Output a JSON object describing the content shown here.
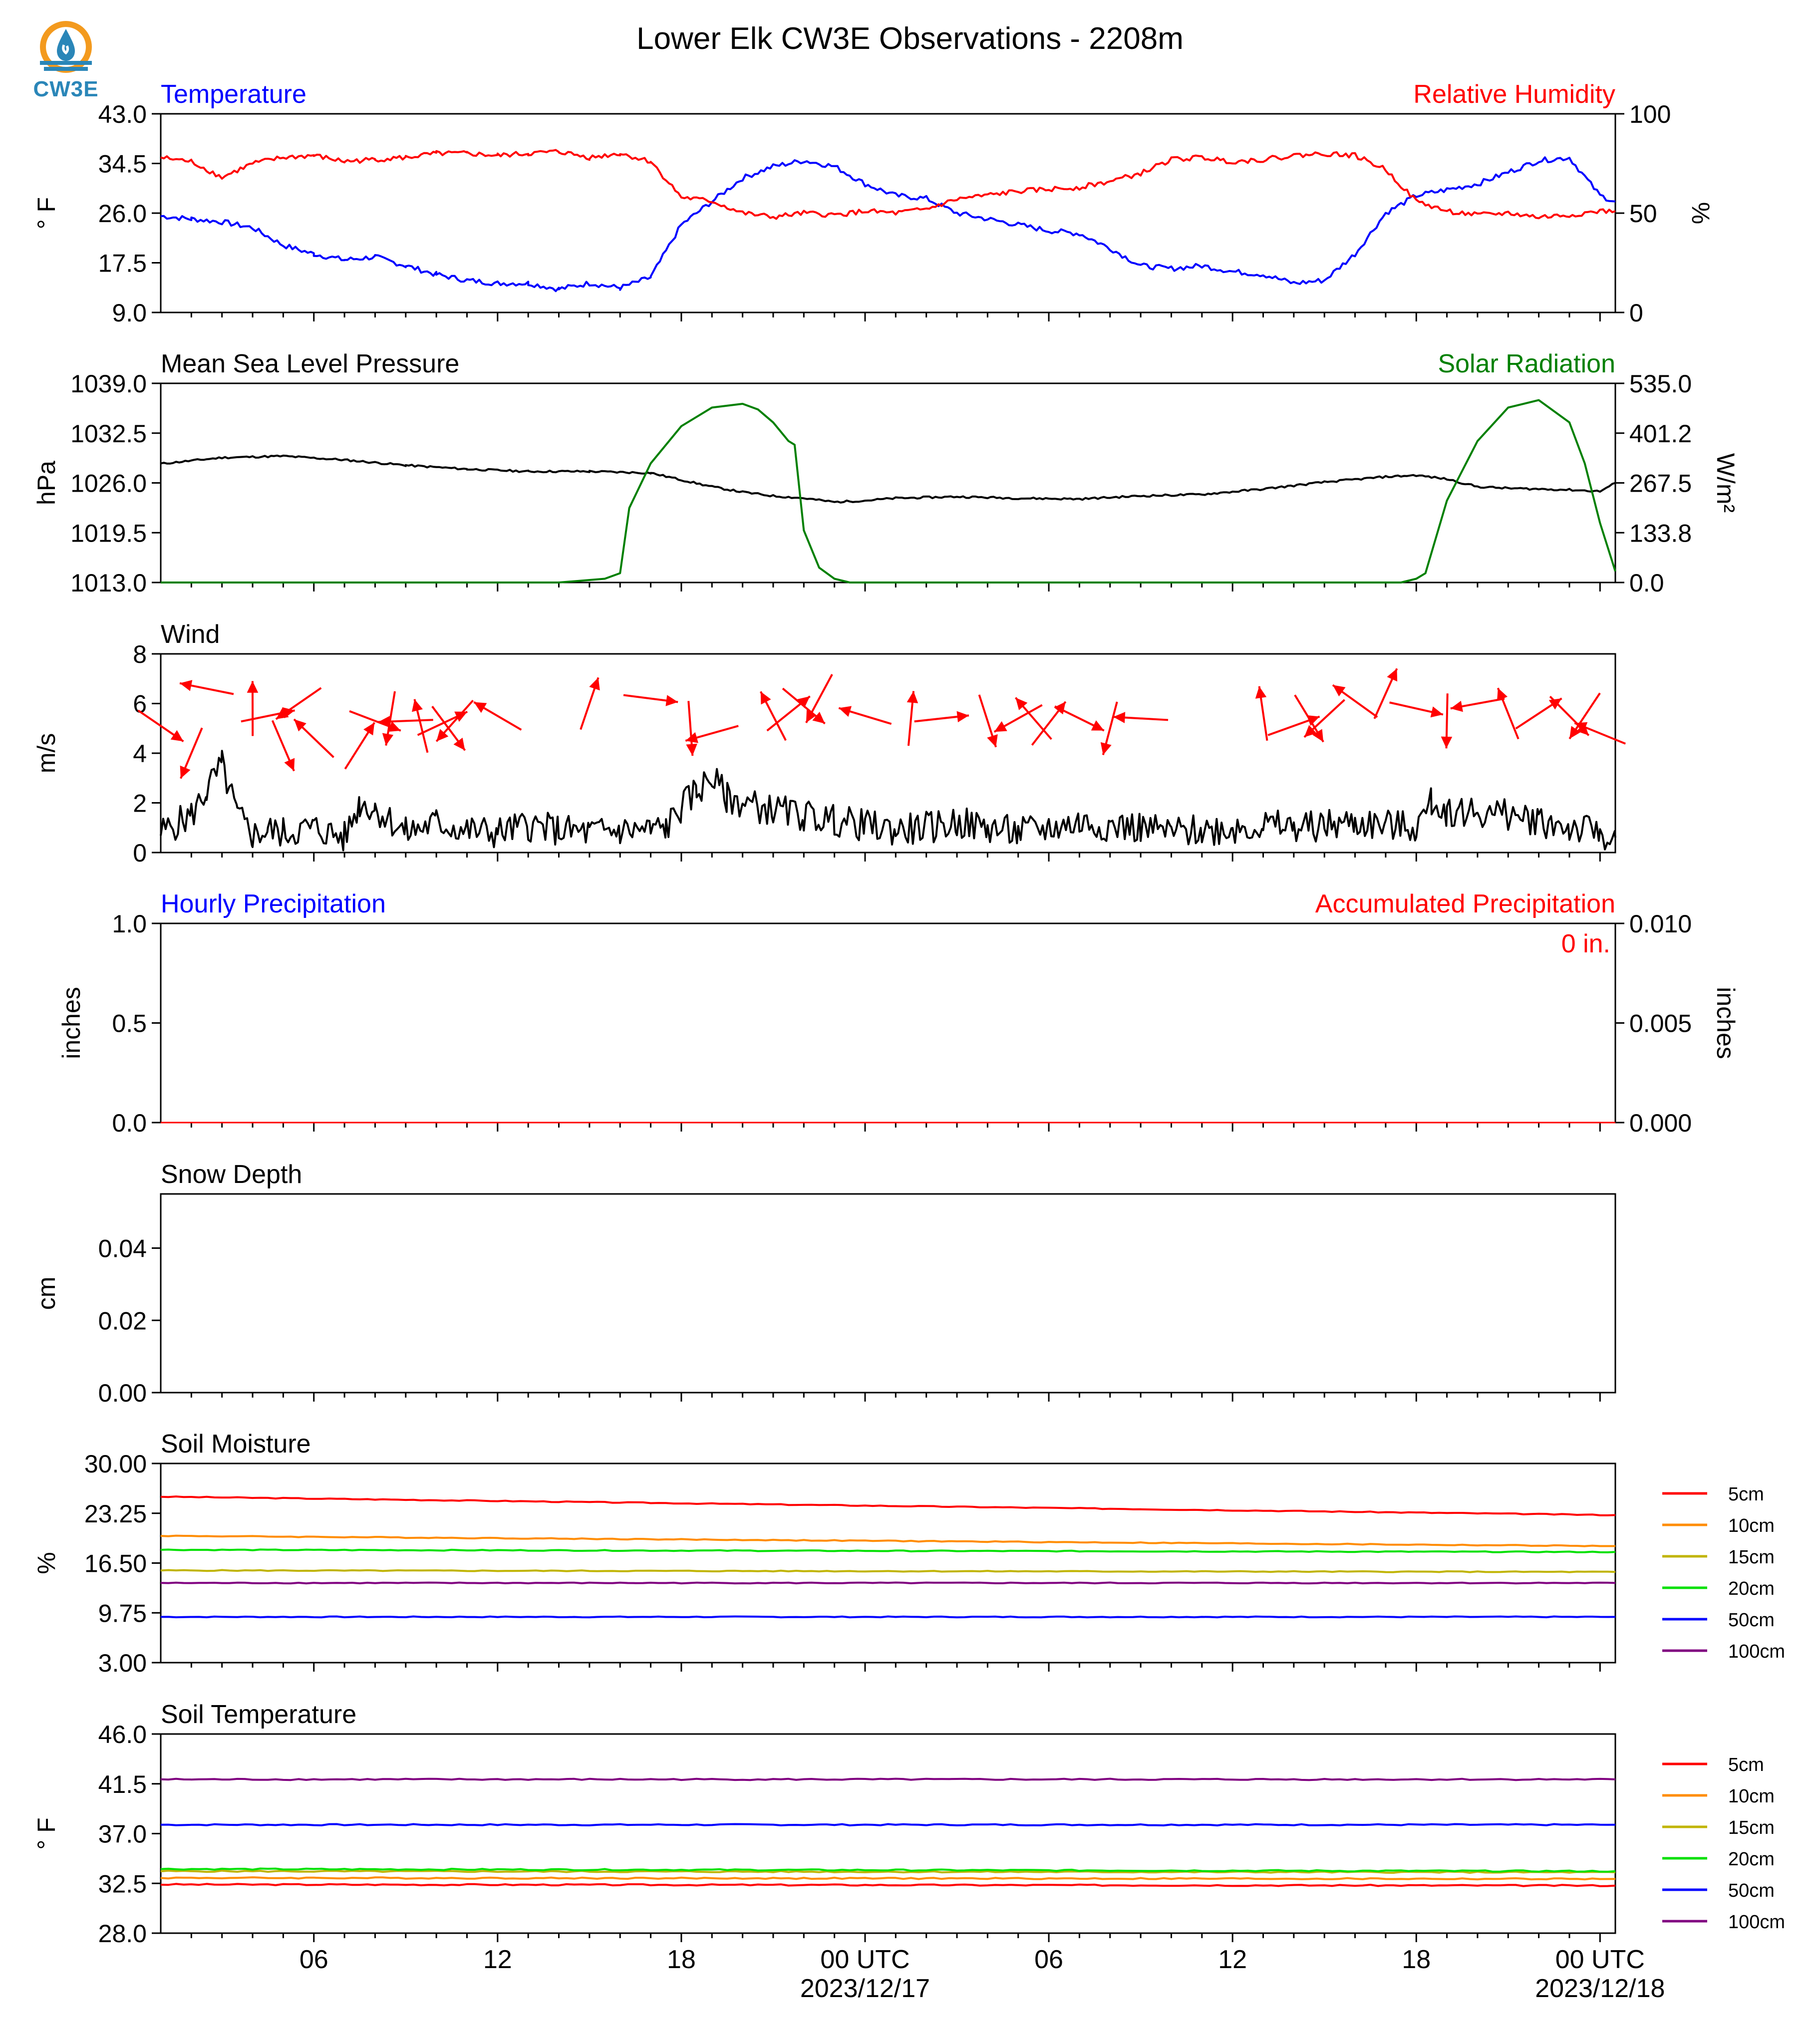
{
  "title": "Lower Elk CW3E Observations - 2208m",
  "logo": {
    "text": "CW3E",
    "icon": "water-drop-sun-logo",
    "colors": {
      "sun": "#f39a1e",
      "water": "#2a86b8"
    }
  },
  "x_axis": {
    "time_range_hours": [
      0,
      47.5
    ],
    "major_tick_labels": [
      {
        "hour": 5,
        "label": "06",
        "sublabel": ""
      },
      {
        "hour": 11,
        "label": "12",
        "sublabel": ""
      },
      {
        "hour": 17,
        "label": "18",
        "sublabel": ""
      },
      {
        "hour": 23,
        "label": "00 UTC",
        "sublabel": "2023/12/17"
      },
      {
        "hour": 29,
        "label": "06",
        "sublabel": ""
      },
      {
        "hour": 35,
        "label": "12",
        "sublabel": ""
      },
      {
        "hour": 41,
        "label": "18",
        "sublabel": ""
      },
      {
        "hour": 47,
        "label": "00 UTC",
        "sublabel": "2023/12/18"
      }
    ]
  },
  "chart_data": [
    {
      "type": "line",
      "title_left": "Temperature",
      "title_right": "Relative Humidity",
      "ylabel_left": "° F",
      "ylabel_right": "%",
      "ylim_left": [
        9.0,
        43.0
      ],
      "ylim_right": [
        0,
        100
      ],
      "yticks_left": [
        "43.0",
        "34.5",
        "26.0",
        "17.5",
        "9.0"
      ],
      "yticks_right": [
        "100",
        "50",
        "0"
      ],
      "series": [
        {
          "name": "Temperature",
          "axis": "left",
          "color": "#0000ff",
          "x": [
            0,
            1,
            2,
            3,
            4,
            5,
            6,
            7,
            8,
            9,
            10,
            11,
            12,
            13,
            14,
            15,
            16,
            17,
            18,
            19,
            20,
            21,
            22,
            23,
            24,
            25,
            26,
            27,
            28,
            29,
            30,
            31,
            32,
            33,
            34,
            35,
            36,
            37,
            38,
            39,
            40,
            41,
            42,
            43,
            44,
            45,
            46,
            47,
            47.5
          ],
          "values": [
            25.5,
            25,
            24.5,
            23.5,
            20.5,
            19,
            18,
            18.5,
            17,
            15.5,
            14.5,
            14,
            14,
            13,
            14,
            13.2,
            15,
            24,
            28,
            32,
            34,
            35,
            34,
            31,
            29,
            28.5,
            26,
            25,
            24,
            23,
            22.5,
            20,
            17,
            16.5,
            17,
            16,
            15.5,
            14,
            14.5,
            19,
            26,
            29,
            30,
            31,
            33,
            35,
            35.5,
            29,
            28
          ]
        },
        {
          "name": "Relative Humidity",
          "axis": "right",
          "color": "#ff0000",
          "x": [
            0,
            1,
            2,
            3,
            4,
            5,
            6,
            7,
            8,
            9,
            10,
            11,
            12,
            13,
            14,
            15,
            16,
            17,
            18,
            19,
            20,
            21,
            22,
            23,
            24,
            25,
            26,
            27,
            28,
            29,
            30,
            31,
            32,
            33,
            34,
            35,
            36,
            37,
            38,
            39,
            40,
            41,
            42,
            43,
            44,
            45,
            46,
            47,
            47.5
          ],
          "values": [
            78,
            76,
            68,
            75,
            78,
            79,
            76,
            77,
            78,
            80,
            80,
            79,
            80,
            81,
            78,
            80,
            76,
            58,
            56,
            50,
            48,
            50,
            49,
            51,
            50,
            52,
            57,
            59,
            61,
            62,
            63,
            66,
            70,
            77,
            78,
            76,
            77,
            79,
            80,
            79,
            72,
            56,
            51,
            49,
            50,
            48,
            49,
            51,
            51
          ]
        }
      ]
    },
    {
      "type": "line",
      "title_left": "Mean Sea Level Pressure",
      "title_right": "Solar Radiation",
      "ylabel_left": "hPa",
      "ylabel_right": "W/m²",
      "ylim_left": [
        1013.0,
        1039.0
      ],
      "ylim_right": [
        0,
        535.0
      ],
      "yticks_left": [
        "1039.0",
        "1032.5",
        "1026.0",
        "1019.5",
        "1013.0"
      ],
      "yticks_right": [
        "535.0",
        "401.2",
        "267.5",
        "133.8",
        "0.0"
      ],
      "series": [
        {
          "name": "Mean Sea Level Pressure",
          "axis": "left",
          "color": "#000000",
          "x": [
            0,
            2,
            4,
            6,
            8,
            10,
            12,
            14,
            16,
            18,
            19,
            20,
            21,
            22,
            23,
            24,
            26,
            28,
            30,
            32,
            34,
            36,
            38,
            40,
            41,
            42,
            43,
            44,
            45,
            46,
            47,
            47.5
          ],
          "values": [
            1028.5,
            1029.3,
            1029.5,
            1029.0,
            1028.3,
            1027.8,
            1027.5,
            1027.5,
            1027.3,
            1025.5,
            1024.8,
            1024.3,
            1024.0,
            1023.5,
            1023.7,
            1024.0,
            1024.2,
            1024.0,
            1023.9,
            1024.3,
            1024.5,
            1025.2,
            1026.1,
            1026.8,
            1027.0,
            1026.5,
            1025.5,
            1025.3,
            1025.2,
            1025.1,
            1024.9,
            1026.0
          ]
        },
        {
          "name": "Solar Radiation",
          "axis": "right",
          "color": "#008000",
          "x": [
            0,
            13,
            14.5,
            15,
            15.3,
            16,
            17,
            18,
            19,
            19.5,
            20,
            20.5,
            20.7,
            21,
            21.5,
            22,
            22.5,
            23,
            40.5,
            41,
            41.3,
            42,
            43,
            44,
            45,
            46,
            46.5,
            47,
            47.5
          ],
          "values": [
            0,
            0,
            10,
            25,
            200,
            320,
            420,
            470,
            480,
            465,
            430,
            380,
            370,
            140,
            40,
            10,
            0,
            0,
            0,
            10,
            25,
            220,
            380,
            470,
            490,
            430,
            320,
            160,
            30
          ]
        }
      ]
    },
    {
      "type": "line",
      "title_left": "Wind",
      "ylabel_left": "m/s",
      "ylim_left": [
        0,
        8
      ],
      "yticks_left": [
        "8",
        "6",
        "4",
        "2",
        "0"
      ],
      "series": [
        {
          "name": "Wind",
          "color": "#000000",
          "x": [
            0,
            1,
            1.5,
            2,
            2.5,
            3,
            3.5,
            4,
            5,
            6,
            6.5,
            7,
            8,
            9,
            10,
            11,
            12,
            13,
            14,
            15,
            16,
            16.5,
            17,
            17.5,
            18,
            18.5,
            19,
            20,
            21,
            22,
            23,
            24,
            25,
            26,
            27,
            28,
            29,
            30,
            31,
            32,
            33,
            34,
            35,
            36,
            37,
            38,
            39,
            40,
            41,
            41.5,
            42,
            43,
            44,
            45,
            46,
            47,
            47.5
          ],
          "values": [
            0.8,
            1.5,
            2.5,
            3.5,
            1.5,
            0.7,
            0.9,
            0.8,
            1.0,
            0.6,
            2.0,
            1.8,
            0.8,
            1.2,
            0.9,
            0.8,
            1.1,
            0.9,
            0.8,
            0.9,
            0.9,
            1.0,
            1.8,
            2.5,
            3.0,
            2.2,
            2.0,
            1.7,
            1.5,
            1.3,
            1.1,
            0.9,
            1.0,
            1.2,
            1.0,
            0.8,
            1.0,
            1.2,
            1.1,
            1.0,
            0.8,
            0.9,
            1.0,
            1.1,
            1.0,
            1.1,
            1.2,
            1.1,
            1.0,
            2.0,
            1.7,
            1.6,
            1.5,
            1.3,
            1.0,
            0.8,
            0.6
          ]
        },
        {
          "name": "Wind Direction",
          "type": "vectors",
          "color": "#ff0000",
          "x": [
            0,
            1,
            1.5,
            3,
            3.5,
            4,
            4.5,
            5,
            6.5,
            7,
            7.5,
            8,
            8.5,
            9.2,
            9.4,
            9.6,
            11,
            14,
            16,
            17.3,
            18,
            20,
            20.5,
            21,
            21.5,
            23,
            24.5,
            25.5,
            27,
            28,
            28.5,
            29,
            30,
            31,
            32,
            36,
            37,
            37.5,
            38,
            39,
            40,
            41,
            42,
            43,
            44,
            45,
            46,
            46.5,
            47
          ],
          "y": [
            5.1,
            4.0,
            6.6,
            5.8,
            5.5,
            4.3,
            6.0,
            4.6,
            4.3,
            5.3,
            5.4,
            5.3,
            5.1,
            5.2,
            5.0,
            5.3,
            5.5,
            6.0,
            6.2,
            5.0,
            4.8,
            5.5,
            5.6,
            5.9,
            6.2,
            5.5,
            5.4,
            5.4,
            5.3,
            5.4,
            5.4,
            5.2,
            5.4,
            5.0,
            5.4,
            5.6,
            5.1,
            5.4,
            5.4,
            6.1,
            6.4,
            5.8,
            5.3,
            6.0,
            5.6,
            5.6,
            5.5,
            5.5,
            4.8
          ]
        }
      ]
    },
    {
      "type": "line",
      "title_left": "Hourly Precipitation",
      "title_right": "Accumulated Precipitation",
      "ylabel_left": "inches",
      "ylabel_right": "inches",
      "ylim_left": [
        0.0,
        1.0
      ],
      "ylim_right": [
        0.0,
        0.01
      ],
      "yticks_left": [
        "1.0",
        "0.5",
        "0.0"
      ],
      "yticks_right": [
        "0.010",
        "0.005",
        "0.000"
      ],
      "annotation": "0 in.",
      "series": [
        {
          "name": "Accumulated Precipitation",
          "color": "#ff0000",
          "x": [
            0,
            47.5
          ],
          "values": [
            0,
            0
          ]
        }
      ]
    },
    {
      "type": "line",
      "title_left": "Snow Depth",
      "ylabel_left": "cm",
      "ylim_left": [
        0.0,
        0.055
      ],
      "yticks_left": [
        "0.04",
        "0.02",
        "0.00"
      ],
      "yticks_values": [
        0.04,
        0.02,
        0.0
      ],
      "series": []
    },
    {
      "type": "line",
      "title_left": "Soil Moisture",
      "ylabel_left": "%",
      "ylim_left": [
        3.0,
        30.0
      ],
      "yticks_left": [
        "30.00",
        "23.25",
        "16.50",
        "9.75",
        "3.00"
      ],
      "series": [
        {
          "name": "5cm",
          "color": "#ff0000",
          "x": [
            0,
            47.5
          ],
          "values": [
            25.5,
            23.0
          ]
        },
        {
          "name": "10cm",
          "color": "#ff8c00",
          "x": [
            0,
            47.5
          ],
          "values": [
            20.2,
            18.8
          ]
        },
        {
          "name": "15cm",
          "color": "#c0b400",
          "x": [
            0,
            47.5
          ],
          "values": [
            15.5,
            15.3
          ]
        },
        {
          "name": "20cm",
          "color": "#00e000",
          "x": [
            0,
            47.5
          ],
          "values": [
            18.3,
            18.0
          ]
        },
        {
          "name": "50cm",
          "color": "#0000ff",
          "x": [
            0,
            47.5
          ],
          "values": [
            9.2,
            9.2
          ]
        },
        {
          "name": "100cm",
          "color": "#800080",
          "x": [
            0,
            47.5
          ],
          "values": [
            13.8,
            13.8
          ]
        }
      ]
    },
    {
      "type": "line",
      "title_left": "Soil Temperature",
      "ylabel_left": "° F",
      "ylim_left": [
        28.0,
        46.0
      ],
      "yticks_left": [
        "46.0",
        "41.5",
        "37.0",
        "32.5",
        "28.0"
      ],
      "series": [
        {
          "name": "5cm",
          "color": "#ff0000",
          "x": [
            0,
            47.5
          ],
          "values": [
            32.4,
            32.3
          ]
        },
        {
          "name": "10cm",
          "color": "#ff8c00",
          "x": [
            0,
            47.5
          ],
          "values": [
            33.0,
            32.9
          ]
        },
        {
          "name": "15cm",
          "color": "#c0b400",
          "x": [
            0,
            47.5
          ],
          "values": [
            33.6,
            33.5
          ]
        },
        {
          "name": "20cm",
          "color": "#00e000",
          "x": [
            0,
            47.5
          ],
          "values": [
            33.8,
            33.6
          ]
        },
        {
          "name": "50cm",
          "color": "#0000ff",
          "x": [
            0,
            47.5
          ],
          "values": [
            37.8,
            37.8
          ]
        },
        {
          "name": "100cm",
          "color": "#800080",
          "x": [
            0,
            47.5
          ],
          "values": [
            41.9,
            41.9
          ]
        }
      ]
    }
  ]
}
